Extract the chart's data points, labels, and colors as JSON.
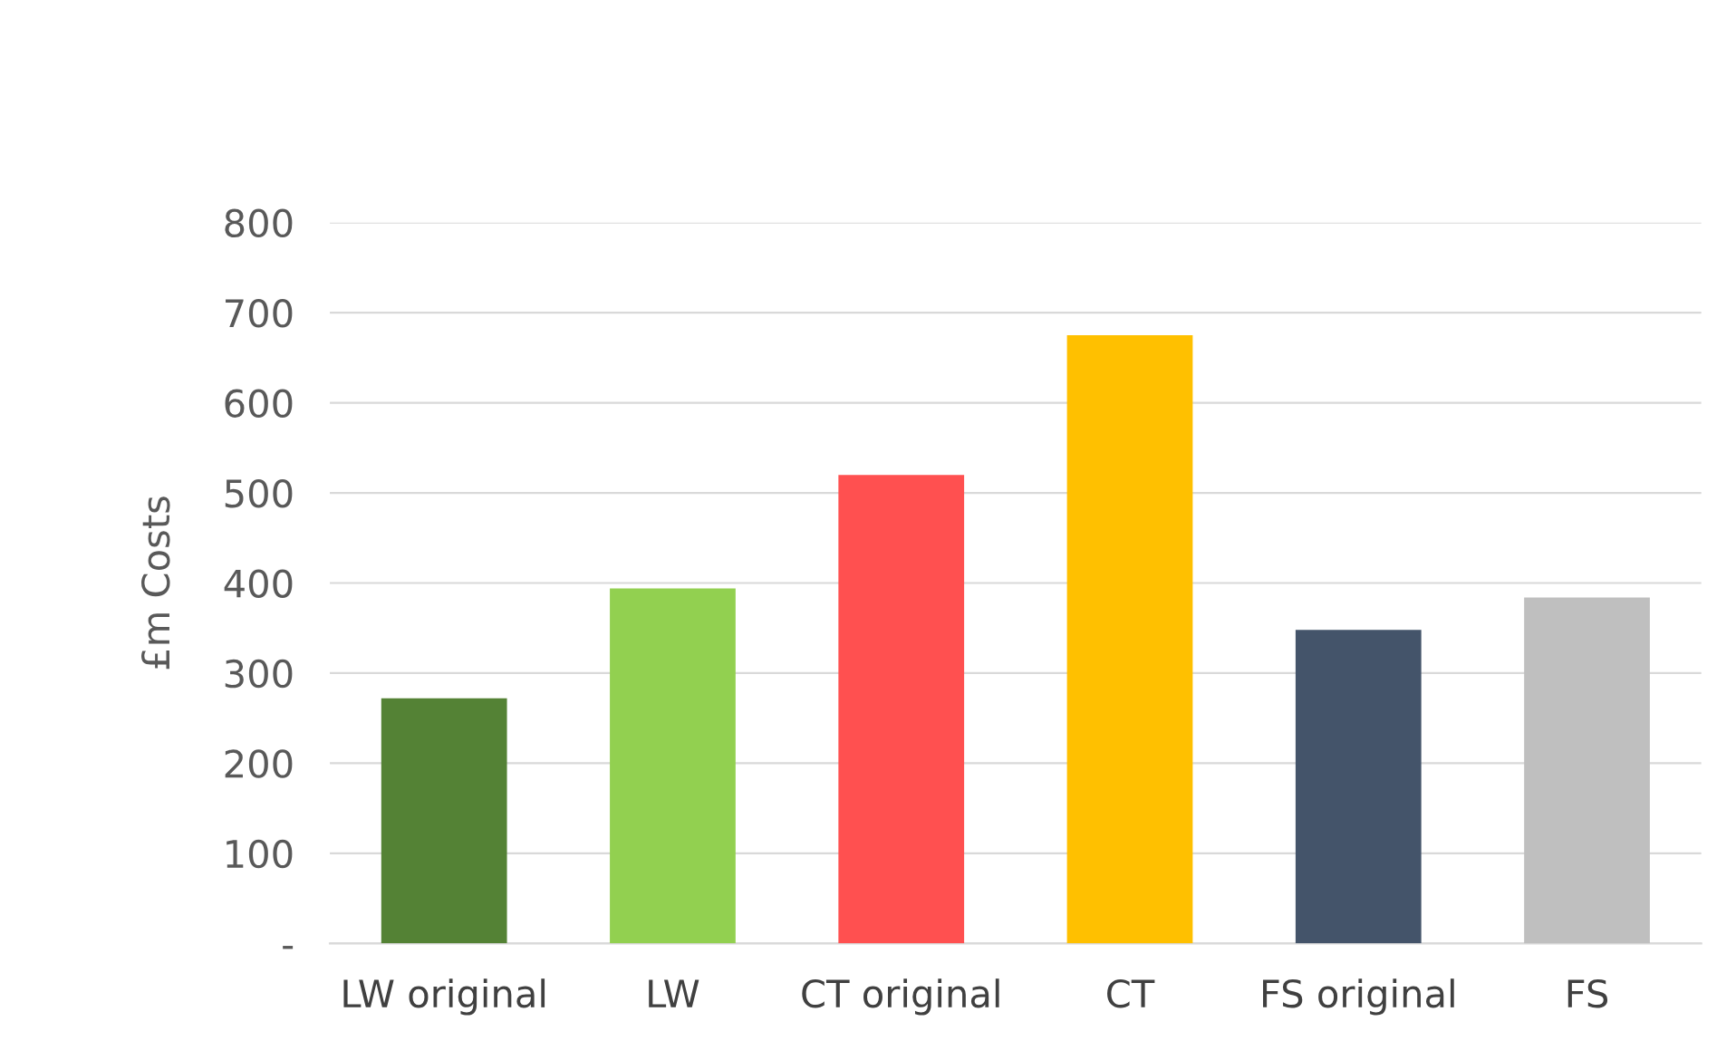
{
  "chart_data": {
    "type": "bar",
    "ylabel": "£m Costs",
    "categories": [
      "LW original",
      "LW",
      "CT original",
      "CT",
      "FS original",
      "FS"
    ],
    "values": [
      272,
      394,
      520,
      675,
      348,
      384
    ],
    "colors": [
      "#548235",
      "#92d050",
      "#ff5050",
      "#ffc000",
      "#44546a",
      "#bfbfbf"
    ],
    "ylim": [
      0,
      800
    ],
    "yticks": [
      {
        "value": 0,
        "label": "-"
      },
      100,
      200,
      300,
      400,
      500,
      600,
      700,
      800
    ],
    "grid": "y",
    "legend": false
  }
}
